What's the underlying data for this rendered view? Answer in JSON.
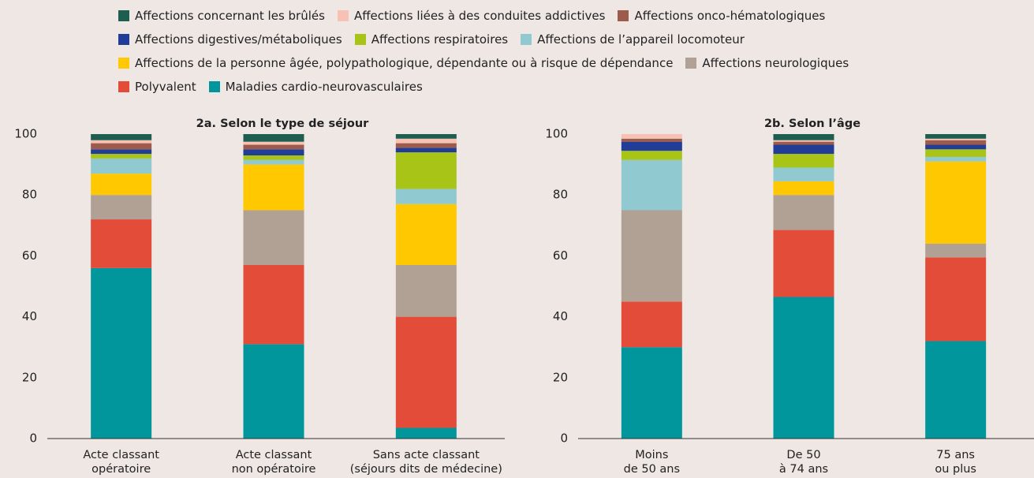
{
  "chart_data": [
    {
      "type": "bar",
      "stacked": true,
      "title": "2a. Selon le type de séjour",
      "categories": [
        "Acte classant\nopératoire",
        "Acte classant\nnon opératoire",
        "Sans acte classant\n(séjours dits de médecine)"
      ],
      "ylim": [
        0,
        100
      ],
      "yticks": [
        0,
        20,
        40,
        60,
        80,
        100
      ],
      "grid": false,
      "series": [
        {
          "name": "Affections concernant les brûlés",
          "color": "#1d5e50",
          "values": [
            2,
            2.5,
            1.5
          ]
        },
        {
          "name": "Affections liées à des conduites addictives",
          "color": "#f7c1b4",
          "values": [
            1,
            1,
            1.5
          ]
        },
        {
          "name": "Affections onco-hématologiques",
          "color": "#9c5b4b",
          "values": [
            2,
            1.5,
            1.5
          ]
        },
        {
          "name": "Affections digestives/métaboliques",
          "color": "#213d98",
          "values": [
            1.5,
            2,
            1.5
          ]
        },
        {
          "name": "Affections respiratoires",
          "color": "#a8c517",
          "values": [
            1.5,
            1.5,
            12
          ]
        },
        {
          "name": "Affections de l’appareil locomoteur",
          "color": "#90c9cf",
          "values": [
            5,
            1.5,
            5
          ]
        },
        {
          "name": "Affections de la personne âgée, polypathologique, dépendante ou à risque de dépendance",
          "color": "#ffc800",
          "values": [
            7,
            15,
            20
          ]
        },
        {
          "name": "Affections neurologiques",
          "color": "#b1a194",
          "values": [
            8,
            18,
            17
          ]
        },
        {
          "name": "Polyvalent",
          "color": "#e24c39",
          "values": [
            16,
            26,
            36.5
          ]
        },
        {
          "name": "Maladies cardio-neurovasculaires",
          "color": "#00969b",
          "values": [
            56,
            31,
            3.5
          ]
        }
      ]
    },
    {
      "type": "bar",
      "stacked": true,
      "title": "2b. Selon l’âge",
      "categories": [
        "Moins\nde 50 ans",
        "De 50\nà 74 ans",
        "75 ans\nou plus"
      ],
      "ylim": [
        0,
        100
      ],
      "yticks": [
        0,
        20,
        40,
        60,
        80,
        100
      ],
      "grid": false,
      "series": [
        {
          "name": "Affections concernant les brûlés",
          "color": "#1d5e50",
          "values": [
            0,
            2,
            1.5
          ]
        },
        {
          "name": "Affections liées à des conduites addictives",
          "color": "#f7c1b4",
          "values": [
            1.5,
            0.5,
            0.5
          ]
        },
        {
          "name": "Affections onco-hématologiques",
          "color": "#9c5b4b",
          "values": [
            1,
            1,
            1.5
          ]
        },
        {
          "name": "Affections digestives/métaboliques",
          "color": "#213d98",
          "values": [
            3,
            3,
            1.5
          ]
        },
        {
          "name": "Affections respiratoires",
          "color": "#a8c517",
          "values": [
            3,
            4.5,
            2.5
          ]
        },
        {
          "name": "Affections de l’appareil locomoteur",
          "color": "#90c9cf",
          "values": [
            16.5,
            4.5,
            1.5
          ]
        },
        {
          "name": "Affections de la personne âgée, polypathologique, dépendante ou à risque de dépendance",
          "color": "#ffc800",
          "values": [
            0,
            4.5,
            27
          ]
        },
        {
          "name": "Affections neurologiques",
          "color": "#b1a194",
          "values": [
            30,
            11.5,
            4.5
          ]
        },
        {
          "name": "Polyvalent",
          "color": "#e24c39",
          "values": [
            15,
            22,
            27.5
          ]
        },
        {
          "name": "Maladies cardio-neurovasculaires",
          "color": "#00969b",
          "values": [
            30,
            46.5,
            32
          ]
        }
      ]
    }
  ]
}
